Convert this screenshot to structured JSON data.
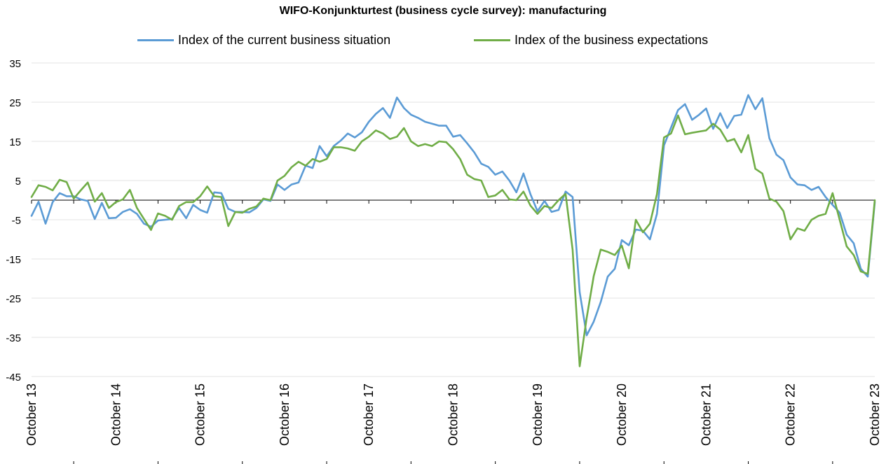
{
  "chart_data": {
    "type": "line",
    "title": "WIFO-Konjunkturtest (business cycle survey): manufacturing",
    "xlabel": "",
    "ylabel": "",
    "ylim": [
      -45,
      35
    ],
    "yticks": [
      "35",
      "25",
      "15",
      "5",
      "-5",
      "-15",
      "-25",
      "-35",
      "-45"
    ],
    "xticks": [
      "October 13",
      "October 14",
      "October 15",
      "October 16",
      "October 17",
      "October 18",
      "October 19",
      "October 20",
      "October 21",
      "October 22",
      "October 23"
    ],
    "x_start": "October 13",
    "x_step": "1 month",
    "grid": true,
    "legend_position": "top",
    "series": [
      {
        "name": "Index of the current business situation",
        "color": "#5b9bd5",
        "values": [
          -4.0,
          -0.4,
          -6.0,
          -0.5,
          1.8,
          1.0,
          1.0,
          0.2,
          -0.2,
          -4.8,
          -0.7,
          -4.6,
          -4.5,
          -3.0,
          -2.3,
          -3.5,
          -6.0,
          -6.8,
          -5.2,
          -5.0,
          -4.8,
          -2.0,
          -4.6,
          -1.2,
          -2.5,
          -3.2,
          2.0,
          1.8,
          -2.2,
          -3.0,
          -3.0,
          -3.1,
          -2.0,
          0.2,
          -0.2,
          4.0,
          2.6,
          4.0,
          4.5,
          8.8,
          8.2,
          13.8,
          11.2,
          13.8,
          15.2,
          17.0,
          16.0,
          17.3,
          20.0,
          22.0,
          23.5,
          21.0,
          26.2,
          23.5,
          21.8,
          21.0,
          20.0,
          19.5,
          19.0,
          19.0,
          16.2,
          16.6,
          14.5,
          12.2,
          9.3,
          8.5,
          6.5,
          7.3,
          5.0,
          2.0,
          6.8,
          1.5,
          -2.8,
          -0.2,
          -3.0,
          -2.5,
          2.2,
          0.8,
          -23.5,
          -34.5,
          -31.0,
          -26.0,
          -19.5,
          -17.5,
          -10.2,
          -11.5,
          -7.5,
          -7.8,
          -10.0,
          -3.5,
          14.0,
          18.5,
          23.0,
          24.5,
          20.5,
          21.8,
          23.4,
          18.2,
          22.2,
          18.4,
          21.5,
          21.8,
          26.8,
          23.2,
          26.0,
          15.8,
          11.6,
          10.2,
          5.8,
          4.0,
          3.8,
          2.6,
          3.4,
          0.8,
          -1.2,
          -3.2,
          -8.8,
          -11.0,
          -17.5,
          -19.5,
          -0.5
        ]
      },
      {
        "name": "Index of the business expectations",
        "color": "#70ad47",
        "values": [
          0.8,
          3.8,
          3.4,
          2.5,
          5.2,
          4.6,
          0.4,
          2.5,
          4.5,
          -0.4,
          1.8,
          -2.0,
          -0.5,
          0.2,
          2.6,
          -2.0,
          -4.8,
          -7.6,
          -3.4,
          -4.0,
          -5.0,
          -1.5,
          -0.5,
          -0.5,
          1.0,
          3.5,
          1.0,
          0.8,
          -6.6,
          -3.0,
          -3.2,
          -2.2,
          -1.6,
          0.4,
          0.0,
          5.0,
          6.2,
          8.4,
          9.8,
          8.8,
          10.5,
          9.8,
          10.5,
          13.5,
          13.5,
          13.2,
          12.6,
          15.0,
          16.2,
          17.8,
          17.0,
          15.6,
          16.2,
          18.4,
          15.0,
          13.8,
          14.3,
          13.8,
          15.0,
          14.8,
          13.0,
          10.5,
          6.5,
          5.4,
          5.0,
          0.8,
          1.2,
          2.6,
          0.2,
          0.0,
          2.2,
          -1.4,
          -3.5,
          -1.5,
          -2.0,
          0.0,
          1.6,
          -12.6,
          -42.4,
          -30.0,
          -19.4,
          -12.6,
          -13.2,
          -14.0,
          -11.6,
          -17.4,
          -5.0,
          -8.2,
          -6.0,
          1.5,
          16.0,
          17.0,
          21.6,
          16.8,
          17.2,
          17.5,
          17.8,
          19.5,
          18.0,
          15.0,
          15.6,
          12.2,
          16.6,
          8.0,
          6.8,
          0.4,
          -0.4,
          -2.8,
          -10.0,
          -7.2,
          -7.8,
          -5.0,
          -4.0,
          -3.5,
          1.8,
          -5.0,
          -11.8,
          -14.0,
          -18.2,
          -18.8,
          0.0
        ]
      }
    ]
  }
}
